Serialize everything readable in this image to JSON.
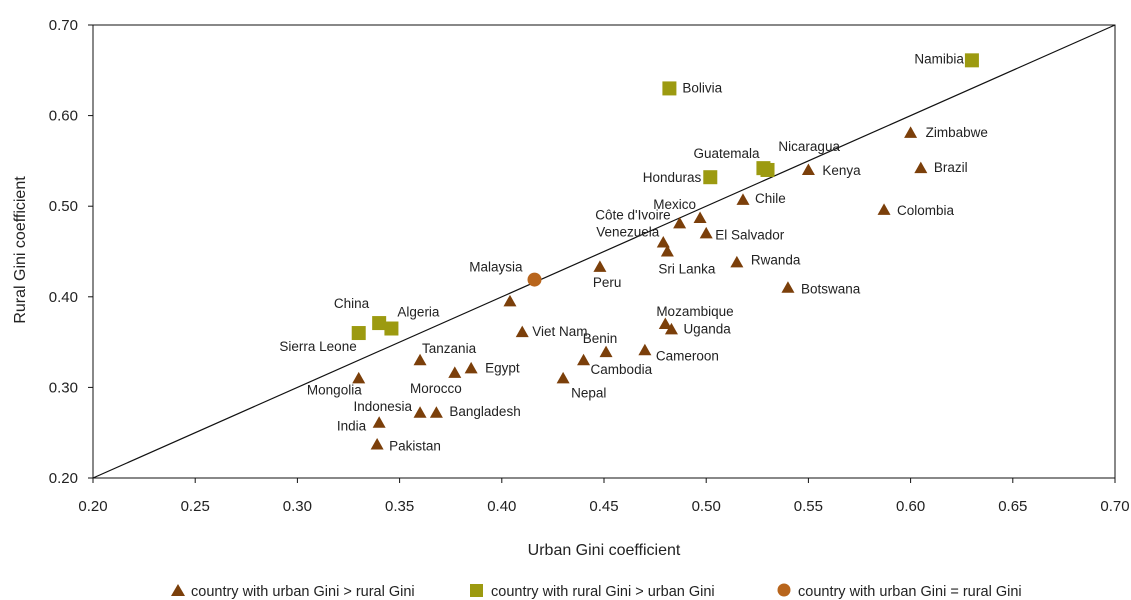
{
  "chart_data": {
    "type": "scatter",
    "title": "",
    "xlabel": "Urban Gini coefficient",
    "ylabel": "Rural Gini coefficient",
    "xlim": [
      0.2,
      0.7
    ],
    "ylim": [
      0.2,
      0.7
    ],
    "x_ticks": [
      "0.20",
      "0.25",
      "0.30",
      "0.35",
      "0.40",
      "0.45",
      "0.50",
      "0.55",
      "0.60",
      "0.65",
      "0.70"
    ],
    "y_ticks": [
      "0.20",
      "0.30",
      "0.40",
      "0.50",
      "0.60",
      "0.70"
    ],
    "grid": false,
    "reference_line": {
      "from": [
        0.2,
        0.2
      ],
      "to": [
        0.7,
        0.7
      ]
    },
    "legend_position": "bottom",
    "colors": {
      "triangle": "#7b3f0a",
      "square": "#9c9a10",
      "circle": "#b8651c"
    },
    "series": [
      {
        "name": "country with urban Gini > rural Gini",
        "marker": "triangle",
        "points": [
          {
            "label": "Zimbabwe",
            "x": 0.6,
            "y": 0.581
          },
          {
            "label": "Brazil",
            "x": 0.605,
            "y": 0.542
          },
          {
            "label": "Kenya",
            "x": 0.55,
            "y": 0.54
          },
          {
            "label": "Chile",
            "x": 0.518,
            "y": 0.507
          },
          {
            "label": "Colombia",
            "x": 0.587,
            "y": 0.496
          },
          {
            "label": "Mexico",
            "x": 0.497,
            "y": 0.487
          },
          {
            "label": "Côte d'Ivoire",
            "x": 0.487,
            "y": 0.481
          },
          {
            "label": "El Salvador",
            "x": 0.5,
            "y": 0.47
          },
          {
            "label": "Venezuela",
            "x": 0.479,
            "y": 0.46
          },
          {
            "label": "Sri Lanka",
            "x": 0.481,
            "y": 0.45
          },
          {
            "label": "Rwanda",
            "x": 0.515,
            "y": 0.438
          },
          {
            "label": "Peru",
            "x": 0.448,
            "y": 0.433
          },
          {
            "label": "Botswana",
            "x": 0.54,
            "y": 0.41
          },
          {
            "label": "Viet Nam",
            "x": 0.404,
            "y": 0.395
          },
          {
            "label": "Mozambique",
            "x": 0.48,
            "y": 0.37
          },
          {
            "label": "Uganda",
            "x": 0.483,
            "y": 0.364
          },
          {
            "label": "Viet Nam",
            "x": 0.41,
            "y": 0.361
          },
          {
            "label": "Cameroon",
            "x": 0.47,
            "y": 0.341
          },
          {
            "label": "Benin",
            "x": 0.451,
            "y": 0.339
          },
          {
            "label": "Cambodia",
            "x": 0.44,
            "y": 0.33
          },
          {
            "label": "Tanzania",
            "x": 0.36,
            "y": 0.33
          },
          {
            "label": "Egypt",
            "x": 0.385,
            "y": 0.321
          },
          {
            "label": "Morocco",
            "x": 0.377,
            "y": 0.316
          },
          {
            "label": "Nepal",
            "x": 0.43,
            "y": 0.31
          },
          {
            "label": "Mongolia",
            "x": 0.33,
            "y": 0.31
          },
          {
            "label": "Indonesia",
            "x": 0.36,
            "y": 0.272
          },
          {
            "label": "Bangladesh",
            "x": 0.368,
            "y": 0.272
          },
          {
            "label": "India",
            "x": 0.34,
            "y": 0.261
          },
          {
            "label": "Pakistan",
            "x": 0.339,
            "y": 0.237
          }
        ]
      },
      {
        "name": "country with rural Gini > urban Gini",
        "marker": "square",
        "points": [
          {
            "label": "Namibia",
            "x": 0.63,
            "y": 0.661
          },
          {
            "label": "Bolivia",
            "x": 0.482,
            "y": 0.63
          },
          {
            "label": "Nicaragua",
            "x": 0.528,
            "y": 0.542
          },
          {
            "label": "Guatemala",
            "x": 0.53,
            "y": 0.54
          },
          {
            "label": "Honduras",
            "x": 0.502,
            "y": 0.532
          },
          {
            "label": "China",
            "x": 0.34,
            "y": 0.371
          },
          {
            "label": "Algeria",
            "x": 0.346,
            "y": 0.365
          },
          {
            "label": "Sierra Leone",
            "x": 0.33,
            "y": 0.36
          }
        ]
      },
      {
        "name": "country with urban Gini = rural Gini",
        "marker": "circle",
        "points": [
          {
            "label": "Malaysia",
            "x": 0.416,
            "y": 0.419
          }
        ]
      }
    ]
  }
}
